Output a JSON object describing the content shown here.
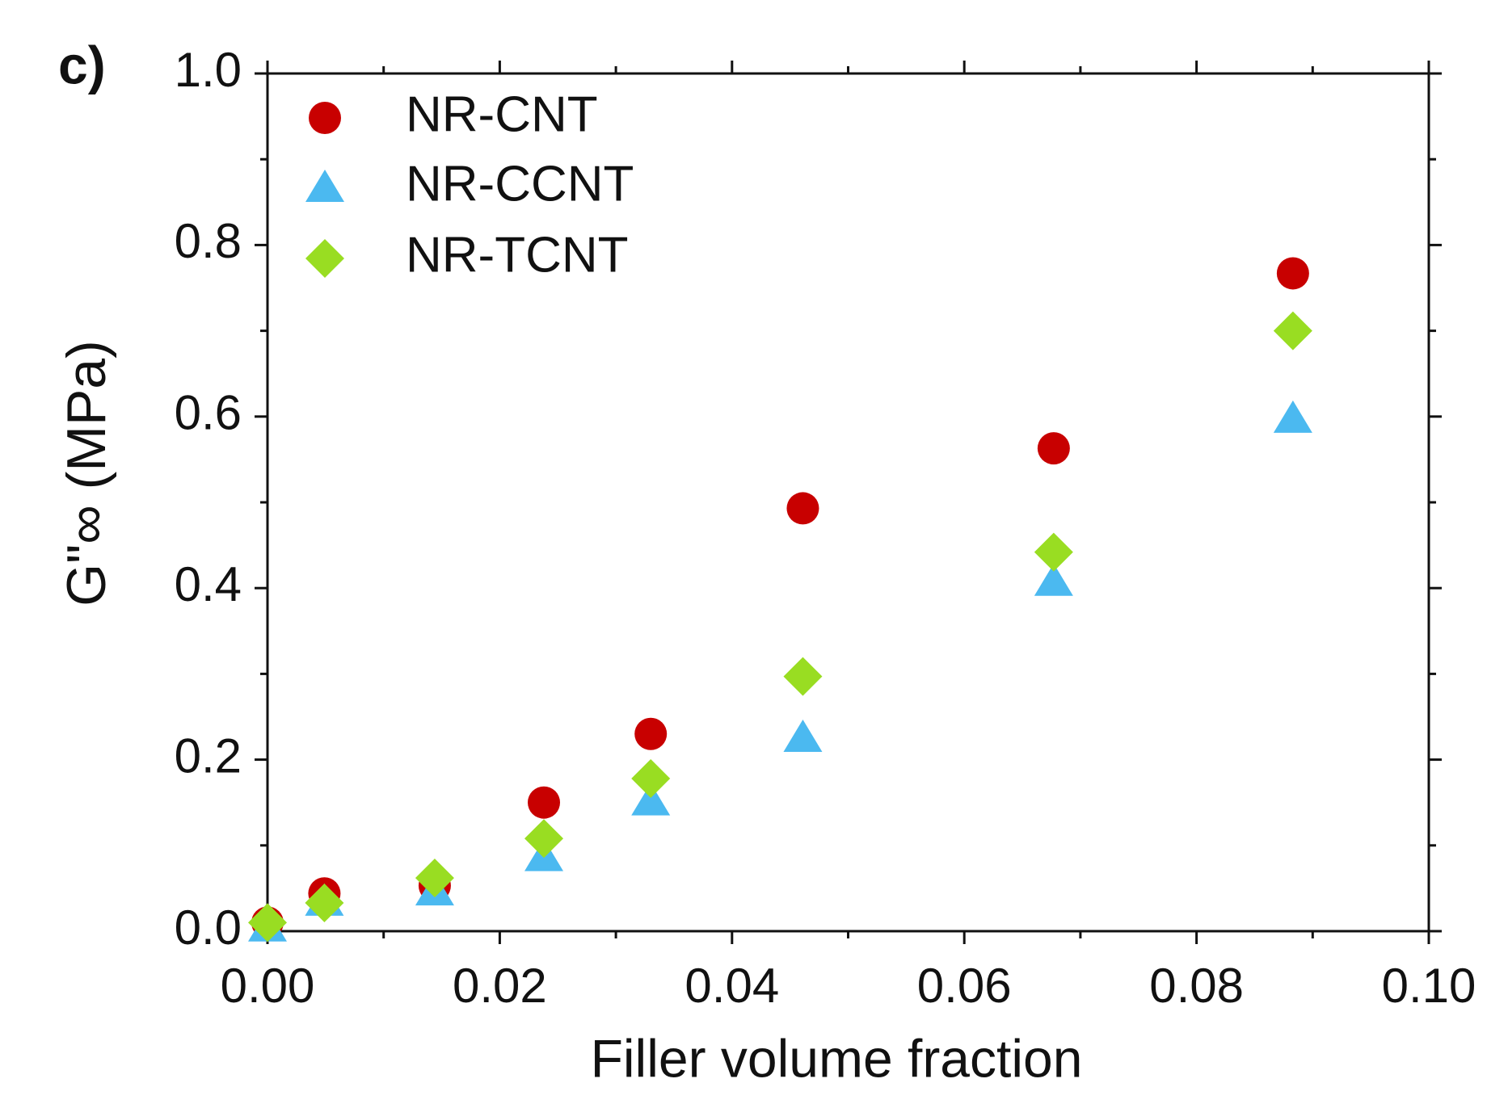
{
  "chart_data": {
    "type": "scatter",
    "panel_label": "c)",
    "xlabel": "Filler volume fraction",
    "ylabel": "G\"∞ (MPa)",
    "xlim": [
      0,
      0.1
    ],
    "ylim": [
      0,
      1
    ],
    "xticks": [
      {
        "value": 0,
        "label": "0.00"
      },
      0.02,
      0.04,
      0.06,
      0.08,
      {
        "value": 0.1,
        "label": "0.10"
      }
    ],
    "yticks": [
      {
        "value": 0,
        "label": "0.0"
      },
      0.2,
      0.4,
      0.6,
      0.8,
      {
        "value": 1,
        "label": "1.0"
      }
    ],
    "legend": "upper left",
    "series": [
      {
        "name": "NR-CNT",
        "color": "#c80000",
        "marker": "circle",
        "x": [
          0,
          0.0049,
          0.0144,
          0.0238,
          0.033,
          0.0461,
          0.0677,
          0.0883
        ],
        "values": [
          0.01,
          0.044,
          0.053,
          0.15,
          0.23,
          0.493,
          0.563,
          0.767
        ]
      },
      {
        "name": "NR-CCNT",
        "color": "#4bb9f0",
        "marker": "triangle",
        "x": [
          0,
          0.0049,
          0.0144,
          0.0238,
          0.033,
          0.0461,
          0.0677,
          0.0883
        ],
        "values": [
          0.005,
          0.035,
          0.047,
          0.087,
          0.152,
          0.226,
          0.408,
          0.598
        ]
      },
      {
        "name": "NR-TCNT",
        "color": "#99dd22",
        "marker": "diamond",
        "x": [
          0,
          0.0049,
          0.0144,
          0.0238,
          0.033,
          0.0461,
          0.0677,
          0.0883
        ],
        "values": [
          0.01,
          0.033,
          0.062,
          0.108,
          0.178,
          0.297,
          0.442,
          0.7
        ]
      }
    ]
  }
}
